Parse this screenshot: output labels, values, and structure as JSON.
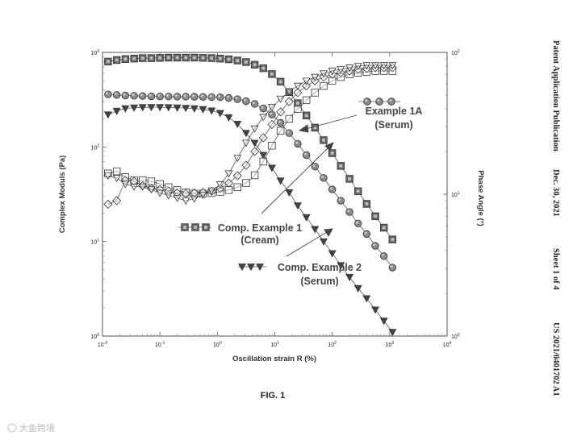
{
  "header": {
    "publication": "Patent Application Publication",
    "date": "Dec. 30, 2021",
    "sheet": "Sheet 1 of 4",
    "number": "US 2021/0401702 A1"
  },
  "figure_label": "FIG. 1",
  "watermark": "大鱼跨境",
  "chart_data": {
    "type": "scatter",
    "x_scale": "log",
    "y_scale": "log",
    "y2_scale": "log",
    "xlabel": "Oscillation strain  R (%)",
    "ylabel": "Complex Moduls (Pa)",
    "y2label": "Phase Angle (°)",
    "xlim": [
      0.01,
      10000
    ],
    "ylim": [
      1,
      1000
    ],
    "y2lim": [
      1,
      100
    ],
    "x_ticks": [
      {
        "value": 0.01,
        "base": "10",
        "exp": "-2"
      },
      {
        "value": 0.1,
        "base": "10",
        "exp": "-1"
      },
      {
        "value": 1,
        "base": "10",
        "exp": "0"
      },
      {
        "value": 10,
        "base": "10",
        "exp": "1"
      },
      {
        "value": 100,
        "base": "10",
        "exp": "2"
      },
      {
        "value": 1000,
        "base": "10",
        "exp": "3"
      },
      {
        "value": 10000,
        "base": "10",
        "exp": "4"
      }
    ],
    "y_ticks": [
      {
        "value": 1,
        "base": "10",
        "exp": "0"
      },
      {
        "value": 10,
        "base": "10",
        "exp": "1"
      },
      {
        "value": 100,
        "base": "10",
        "exp": "2"
      },
      {
        "value": 1000,
        "base": "10",
        "exp": "3"
      }
    ],
    "y2_ticks": [
      {
        "value": 1,
        "base": "10",
        "exp": "0"
      },
      {
        "value": 10,
        "base": "10",
        "exp": "1"
      },
      {
        "value": 100,
        "base": "10",
        "exp": "2"
      }
    ],
    "legend_entries": [
      {
        "series": "Example 1A (Serum)",
        "lines": [
          "Example 1A",
          "(Serum)"
        ]
      },
      {
        "series": "Comp. Example 1 (Cream)",
        "lines": [
          "Comp. Example 1",
          "(Cream)"
        ]
      },
      {
        "series": "Comp. Example 2 (Serum)",
        "lines": [
          "Comp. Example 2",
          "(Serum)"
        ]
      }
    ],
    "x": [
      0.0125,
      0.0177,
      0.025,
      0.0355,
      0.05,
      0.0708,
      0.1,
      0.141,
      0.2,
      0.282,
      0.398,
      0.562,
      0.794,
      1.12,
      1.58,
      2.24,
      3.16,
      4.47,
      6.31,
      8.91,
      12.6,
      17.8,
      25.1,
      35.5,
      50.1,
      70.8,
      100,
      141,
      200,
      282,
      398,
      562,
      794,
      1120
    ],
    "series": [
      {
        "name": "Comp. Example 1 (Cream)",
        "marker": "square",
        "fill": "#666666",
        "axis": "y",
        "values": [
          800,
          830,
          850,
          860,
          870,
          870,
          875,
          880,
          880,
          880,
          880,
          875,
          870,
          860,
          845,
          820,
          790,
          740,
          680,
          590,
          490,
          380,
          290,
          215,
          160,
          118,
          86,
          63,
          46,
          34,
          25,
          18.5,
          14,
          10.5
        ]
      },
      {
        "name": "Example 1A (Serum)",
        "marker": "circle",
        "fill": "#8a8a8a",
        "axis": "y",
        "values": [
          360,
          355,
          350,
          348,
          345,
          343,
          342,
          341,
          340,
          340,
          339,
          338,
          337,
          335,
          330,
          320,
          305,
          285,
          255,
          220,
          180,
          140,
          108,
          82,
          62,
          47,
          35.5,
          27,
          20.5,
          15.5,
          12,
          9,
          7,
          5.3
        ]
      },
      {
        "name": "Comp. Example 2 (Serum)",
        "marker": "triangle-down",
        "fill": "#444444",
        "axis": "y",
        "values": [
          220,
          240,
          255,
          260,
          262,
          263,
          263,
          262,
          260,
          258,
          255,
          250,
          242,
          228,
          205,
          175,
          140,
          110,
          82,
          60,
          44,
          33,
          24,
          18,
          13.5,
          10,
          7.5,
          5.6,
          4.2,
          3.2,
          2.5,
          1.9,
          1.45,
          1.1
        ]
      },
      {
        "name": "Comp. Example 1 (Cream)",
        "marker": "square-open",
        "fill": "none",
        "axis": "y2",
        "values": [
          14,
          14.5,
          13.2,
          12.5,
          12.5,
          12.3,
          11.8,
          11.2,
          10.7,
          10.3,
          10.1,
          10.1,
          10.2,
          10.4,
          10.7,
          11.2,
          12,
          13.6,
          17,
          22,
          28,
          34,
          40,
          46,
          52,
          58,
          63,
          67,
          70,
          72,
          73,
          74,
          74,
          74
        ]
      },
      {
        "name": "Example 1A (Serum)",
        "marker": "diamond-open",
        "fill": "none",
        "axis": "y2",
        "values": [
          8.5,
          9,
          12.5,
          12.3,
          11.5,
          11,
          10.8,
          10.5,
          10.2,
          10.1,
          10.2,
          10.3,
          10.5,
          11,
          12,
          13.5,
          16,
          20,
          25,
          31,
          38,
          45,
          52,
          58,
          63,
          67,
          70,
          72,
          74,
          76,
          77,
          78,
          78,
          78
        ]
      },
      {
        "name": "Comp. Example 2 (Serum)",
        "marker": "triangle-down-open",
        "fill": "none",
        "axis": "y2",
        "values": [
          13.5,
          13,
          11.8,
          11.3,
          11.3,
          10.8,
          10.2,
          9.8,
          9.4,
          9,
          9.3,
          9.9,
          10.6,
          11.7,
          14,
          18,
          23,
          29,
          35,
          41,
          47,
          53,
          58,
          63,
          67,
          71,
          74,
          76,
          78,
          80,
          81,
          81,
          81,
          81
        ]
      }
    ]
  }
}
